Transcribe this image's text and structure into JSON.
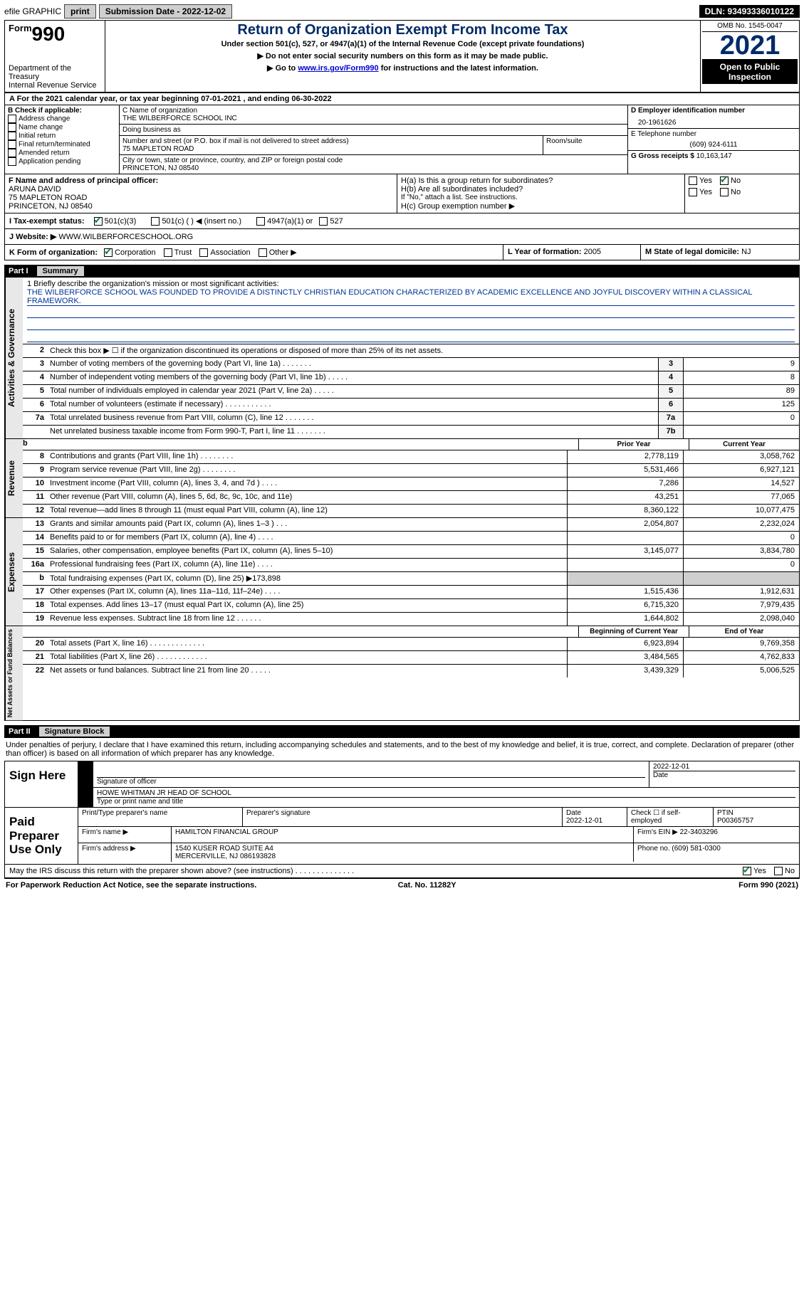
{
  "topbar": {
    "efile": "efile GRAPHIC",
    "print": "print",
    "submission_label": "Submission Date - 2022-12-02",
    "dln": "DLN: 93493336010122"
  },
  "header": {
    "form_word": "Form",
    "form_num": "990",
    "dept": "Department of the Treasury",
    "irs": "Internal Revenue Service",
    "title": "Return of Organization Exempt From Income Tax",
    "sub": "Under section 501(c), 527, or 4947(a)(1) of the Internal Revenue Code (except private foundations)",
    "note1": "▶ Do not enter social security numbers on this form as it may be made public.",
    "note2_pre": "▶ Go to ",
    "note2_link": "www.irs.gov/Form990",
    "note2_post": " for instructions and the latest information.",
    "omb": "OMB No. 1545-0047",
    "year": "2021",
    "open": "Open to Public Inspection"
  },
  "calendar": "A For the 2021 calendar year, or tax year beginning 07-01-2021     , and ending 06-30-2022",
  "B": {
    "label": "B Check if applicable:",
    "items": [
      "Address change",
      "Name change",
      "Initial return",
      "Final return/terminated",
      "Amended return",
      "Application pending"
    ]
  },
  "C": {
    "name_label": "C Name of organization",
    "name": "THE WILBERFORCE SCHOOL INC",
    "dba_label": "Doing business as",
    "dba": "",
    "addr_label": "Number and street (or P.O. box if mail is not delivered to street address)",
    "room_label": "Room/suite",
    "addr": "75 MAPLETON ROAD",
    "city_label": "City or town, state or province, country, and ZIP or foreign postal code",
    "city": "PRINCETON, NJ  08540"
  },
  "D": {
    "ein_label": "D Employer identification number",
    "ein": "20-1961626",
    "tel_label": "E Telephone number",
    "tel": "(609) 924-6111",
    "gross_label": "G Gross receipts $",
    "gross": "10,163,147"
  },
  "F": {
    "label": "F  Name and address of principal officer:",
    "name": "ARUNA DAVID",
    "addr": "75 MAPLETON ROAD",
    "city": "PRINCETON, NJ  08540"
  },
  "H": {
    "a_label": "H(a)  Is this a group return for subordinates?",
    "b_label": "H(b)  Are all subordinates included?",
    "b_note": "If \"No,\" attach a list. See instructions.",
    "c_label": "H(c)  Group exemption number ▶",
    "yes": "Yes",
    "no": "No"
  },
  "I": {
    "label": "I    Tax-exempt status:",
    "opts": [
      "501(c)(3)",
      "501(c) (  ) ◀ (insert no.)",
      "4947(a)(1) or",
      "527"
    ]
  },
  "J": {
    "label": "J   Website: ▶",
    "val": "WWW.WILBERFORCESCHOOL.ORG"
  },
  "K": {
    "label": "K Form of organization:",
    "opts": [
      "Corporation",
      "Trust",
      "Association",
      "Other ▶"
    ]
  },
  "L": {
    "label": "L Year of formation:",
    "val": "2005"
  },
  "M": {
    "label": "M State of legal domicile:",
    "val": "NJ"
  },
  "part1": {
    "label": "Part I",
    "title": "Summary",
    "mission_label": "1   Briefly describe the organization's mission or most significant activities:",
    "mission": "THE WILBERFORCE SCHOOL WAS FOUNDED TO PROVIDE A DISTINCTLY CHRISTIAN EDUCATION CHARACTERIZED BY ACADEMIC EXCELLENCE AND JOYFUL DISCOVERY WITHIN A CLASSICAL FRAMEWORK.",
    "line2": "Check this box ▶ ☐  if the organization discontinued its operations or disposed of more than 25% of its net assets."
  },
  "sidelabels": {
    "gov": "Activities & Governance",
    "rev": "Revenue",
    "exp": "Expenses",
    "net": "Net Assets or Fund Balances"
  },
  "gov_lines": [
    {
      "n": "3",
      "d": "Number of voting members of the governing body (Part VI, line 1a)   .    .    .    .    .    .    .",
      "b": "3",
      "v": "9"
    },
    {
      "n": "4",
      "d": "Number of independent voting members of the governing body (Part VI, line 1b)  .    .    .    .    .",
      "b": "4",
      "v": "8"
    },
    {
      "n": "5",
      "d": "Total number of individuals employed in calendar year 2021 (Part V, line 2a)   .    .    .    .    .",
      "b": "5",
      "v": "89"
    },
    {
      "n": "6",
      "d": "Total number of volunteers (estimate if necessary)    .    .    .    .    .    .    .    .    .    .    .",
      "b": "6",
      "v": "125"
    },
    {
      "n": "7a",
      "d": "Total unrelated business revenue from Part VIII, column (C), line 12   .    .    .    .    .    .    .",
      "b": "7a",
      "v": "0"
    },
    {
      "n": "",
      "d": "Net unrelated business taxable income from Form 990-T, Part I, line 11  .    .    .    .    .    .    .",
      "b": "7b",
      "v": ""
    }
  ],
  "col_heads": {
    "b": "b",
    "h1": "Prior Year",
    "h2": "Current Year"
  },
  "rev_lines": [
    {
      "n": "8",
      "d": "Contributions and grants (Part VIII, line 1h)   .    .    .    .    .    .    .    .",
      "p": "2,778,119",
      "c": "3,058,762"
    },
    {
      "n": "9",
      "d": "Program service revenue (Part VIII, line 2g)   .    .    .    .    .    .    .    .",
      "p": "5,531,466",
      "c": "6,927,121"
    },
    {
      "n": "10",
      "d": "Investment income (Part VIII, column (A), lines 3, 4, and 7d )   .    .    .    .",
      "p": "7,286",
      "c": "14,527"
    },
    {
      "n": "11",
      "d": "Other revenue (Part VIII, column (A), lines 5, 6d, 8c, 9c, 10c, and 11e)",
      "p": "43,251",
      "c": "77,065"
    },
    {
      "n": "12",
      "d": "Total revenue—add lines 8 through 11 (must equal Part VIII, column (A), line 12)",
      "p": "8,360,122",
      "c": "10,077,475"
    }
  ],
  "exp_lines": [
    {
      "n": "13",
      "d": "Grants and similar amounts paid (Part IX, column (A), lines 1–3 )   .    .    .",
      "p": "2,054,807",
      "c": "2,232,024"
    },
    {
      "n": "14",
      "d": "Benefits paid to or for members (Part IX, column (A), line 4)   .    .    .    .",
      "p": "",
      "c": "0"
    },
    {
      "n": "15",
      "d": "Salaries, other compensation, employee benefits (Part IX, column (A), lines 5–10)",
      "p": "3,145,077",
      "c": "3,834,780"
    },
    {
      "n": "16a",
      "d": "Professional fundraising fees (Part IX, column (A), line 11e)   .    .    .    .",
      "p": "",
      "c": "0"
    },
    {
      "n": "b",
      "d": "Total fundraising expenses (Part IX, column (D), line 25) ▶173,898",
      "p": "shade",
      "c": "shade"
    },
    {
      "n": "17",
      "d": "Other expenses (Part IX, column (A), lines 11a–11d, 11f–24e)   .    .    .    .",
      "p": "1,515,436",
      "c": "1,912,631"
    },
    {
      "n": "18",
      "d": "Total expenses. Add lines 13–17 (must equal Part IX, column (A), line 25)",
      "p": "6,715,320",
      "c": "7,979,435"
    },
    {
      "n": "19",
      "d": "Revenue less expenses. Subtract line 18 from line 12  .    .    .    .    .    .",
      "p": "1,644,802",
      "c": "2,098,040"
    }
  ],
  "net_heads": {
    "h1": "Beginning of Current Year",
    "h2": "End of Year"
  },
  "net_lines": [
    {
      "n": "20",
      "d": "Total assets (Part X, line 16)  .   .   .   .   .   .   .   .   .   .   .   .   .",
      "p": "6,923,894",
      "c": "9,769,358"
    },
    {
      "n": "21",
      "d": "Total liabilities (Part X, line 26)  .   .   .   .   .   .   .   .   .   .   .   .",
      "p": "3,484,565",
      "c": "4,762,833"
    },
    {
      "n": "22",
      "d": "Net assets or fund balances. Subtract line 21 from line 20  .   .   .   .   .",
      "p": "3,439,329",
      "c": "5,006,525"
    }
  ],
  "part2": {
    "label": "Part II",
    "title": "Signature Block"
  },
  "sig": {
    "decl": "Under penalties of perjury, I declare that I have examined this return, including accompanying schedules and statements, and to the best of my knowledge and belief, it is true, correct, and complete. Declaration of preparer (other than officer) is based on all information of which preparer has any knowledge.",
    "sign_here": "Sign Here",
    "sig_officer": "Signature of officer",
    "date": "Date",
    "date_val": "2022-12-01",
    "officer_name": "HOWE WHITMAN JR HEAD OF SCHOOL",
    "type_name": "Type or print name and title",
    "paid": "Paid Preparer Use Only",
    "prep_name_label": "Print/Type preparer's name",
    "prep_sig_label": "Preparer's signature",
    "prep_date_label": "Date",
    "prep_date": "2022-12-01",
    "check_self": "Check ☐ if self-employed",
    "ptin_label": "PTIN",
    "ptin": "P00365757",
    "firm_name_label": "Firm's name    ▶",
    "firm_name": "HAMILTON FINANCIAL GROUP",
    "firm_ein_label": "Firm's EIN ▶",
    "firm_ein": "22-3403296",
    "firm_addr_label": "Firm's address ▶",
    "firm_addr": "1540 KUSER ROAD SUITE A4",
    "firm_city": "MERCERVILLE, NJ  086193828",
    "phone_label": "Phone no.",
    "phone": "(609) 581-0300",
    "discuss": "May the IRS discuss this return with the preparer shown above? (see instructions)   .    .    .    .    .    .    .    .    .    .    .    .    .    ."
  },
  "footer": {
    "pra": "For Paperwork Reduction Act Notice, see the separate instructions.",
    "cat": "Cat. No. 11282Y",
    "form": "Form 990 (2021)"
  }
}
